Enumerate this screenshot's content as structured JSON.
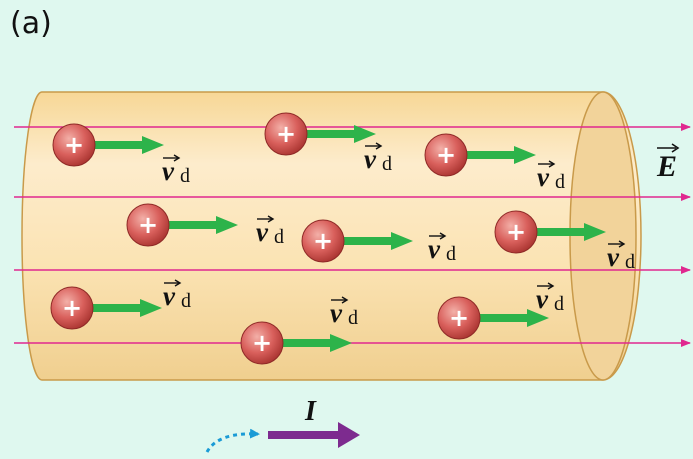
{
  "panel_label": "(a)",
  "drift_label": {
    "symbol": "v",
    "subscript": "d"
  },
  "field_label": "E",
  "current_label": "I",
  "charge_sign": "+",
  "colors": {
    "background": "#dff8ef",
    "conductor_fill": "#fbe4b8",
    "conductor_edge": "#c99a4a",
    "field_line": "#e0288f",
    "drift_arrow": "#2db34a",
    "charge_fill": "#d9605c",
    "current_arrow": "#7d2b8f",
    "electron_path": "#1a9bd6"
  }
}
